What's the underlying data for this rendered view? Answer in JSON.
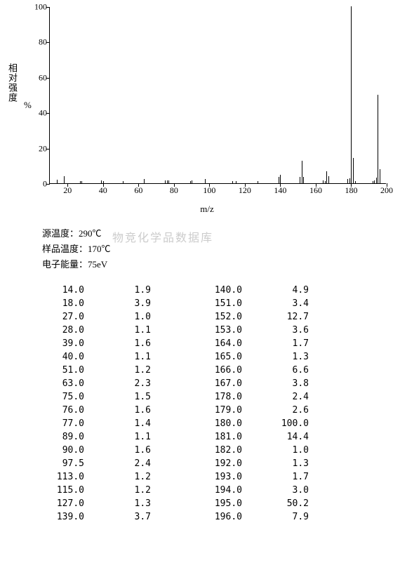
{
  "chart": {
    "type": "mass-spectrum",
    "x_label": "m/z",
    "y_label_text": "相对强度",
    "y_label_unit": "%",
    "x_min": 10,
    "x_max": 200,
    "y_min": 0,
    "y_max": 100,
    "x_ticks": [
      20,
      40,
      60,
      80,
      100,
      120,
      140,
      160,
      180,
      200
    ],
    "y_ticks": [
      0,
      20,
      40,
      60,
      80,
      100
    ],
    "bar_color": "#000000",
    "background_color": "#ffffff",
    "axis_color": "#000000",
    "tick_fontsize": 12,
    "label_fontsize": 13,
    "peaks": [
      {
        "mz": 14.0,
        "i": 1.9
      },
      {
        "mz": 18.0,
        "i": 3.9
      },
      {
        "mz": 27.0,
        "i": 1.0
      },
      {
        "mz": 28.0,
        "i": 1.1
      },
      {
        "mz": 39.0,
        "i": 1.6
      },
      {
        "mz": 40.0,
        "i": 1.1
      },
      {
        "mz": 51.0,
        "i": 1.2
      },
      {
        "mz": 63.0,
        "i": 2.3
      },
      {
        "mz": 75.0,
        "i": 1.5
      },
      {
        "mz": 76.0,
        "i": 1.6
      },
      {
        "mz": 77.0,
        "i": 1.4
      },
      {
        "mz": 89.0,
        "i": 1.1
      },
      {
        "mz": 90.0,
        "i": 1.6
      },
      {
        "mz": 97.5,
        "i": 2.4
      },
      {
        "mz": 113.0,
        "i": 1.2
      },
      {
        "mz": 115.0,
        "i": 1.2
      },
      {
        "mz": 127.0,
        "i": 1.3
      },
      {
        "mz": 139.0,
        "i": 3.7
      },
      {
        "mz": 140.0,
        "i": 4.9
      },
      {
        "mz": 151.0,
        "i": 3.4
      },
      {
        "mz": 152.0,
        "i": 12.7
      },
      {
        "mz": 153.0,
        "i": 3.6
      },
      {
        "mz": 164.0,
        "i": 1.7
      },
      {
        "mz": 165.0,
        "i": 1.3
      },
      {
        "mz": 166.0,
        "i": 6.6
      },
      {
        "mz": 167.0,
        "i": 3.8
      },
      {
        "mz": 178.0,
        "i": 2.4
      },
      {
        "mz": 179.0,
        "i": 2.6
      },
      {
        "mz": 180.0,
        "i": 100.0
      },
      {
        "mz": 181.0,
        "i": 14.4
      },
      {
        "mz": 182.0,
        "i": 1.0
      },
      {
        "mz": 192.0,
        "i": 1.3
      },
      {
        "mz": 193.0,
        "i": 1.7
      },
      {
        "mz": 194.0,
        "i": 3.0
      },
      {
        "mz": 195.0,
        "i": 50.2
      },
      {
        "mz": 196.0,
        "i": 7.9
      }
    ]
  },
  "params": {
    "source_temp_label": "源温度：290℃",
    "sample_temp_label": "样品温度：170℃",
    "electron_energy_label": "电子能量：75eV"
  },
  "watermark": "物竞化学品数据库",
  "table": {
    "rows": [
      [
        "14.0",
        "1.9",
        "140.0",
        "4.9"
      ],
      [
        "18.0",
        "3.9",
        "151.0",
        "3.4"
      ],
      [
        "27.0",
        "1.0",
        "152.0",
        "12.7"
      ],
      [
        "28.0",
        "1.1",
        "153.0",
        "3.6"
      ],
      [
        "39.0",
        "1.6",
        "164.0",
        "1.7"
      ],
      [
        "40.0",
        "1.1",
        "165.0",
        "1.3"
      ],
      [
        "51.0",
        "1.2",
        "166.0",
        "6.6"
      ],
      [
        "63.0",
        "2.3",
        "167.0",
        "3.8"
      ],
      [
        "75.0",
        "1.5",
        "178.0",
        "2.4"
      ],
      [
        "76.0",
        "1.6",
        "179.0",
        "2.6"
      ],
      [
        "77.0",
        "1.4",
        "180.0",
        "100.0"
      ],
      [
        "89.0",
        "1.1",
        "181.0",
        "14.4"
      ],
      [
        "90.0",
        "1.6",
        "182.0",
        "1.0"
      ],
      [
        "97.5",
        "2.4",
        "192.0",
        "1.3"
      ],
      [
        "113.0",
        "1.2",
        "193.0",
        "1.7"
      ],
      [
        "115.0",
        "1.2",
        "194.0",
        "3.0"
      ],
      [
        "127.0",
        "1.3",
        "195.0",
        "50.2"
      ],
      [
        "139.0",
        "3.7",
        "196.0",
        "7.9"
      ]
    ]
  }
}
